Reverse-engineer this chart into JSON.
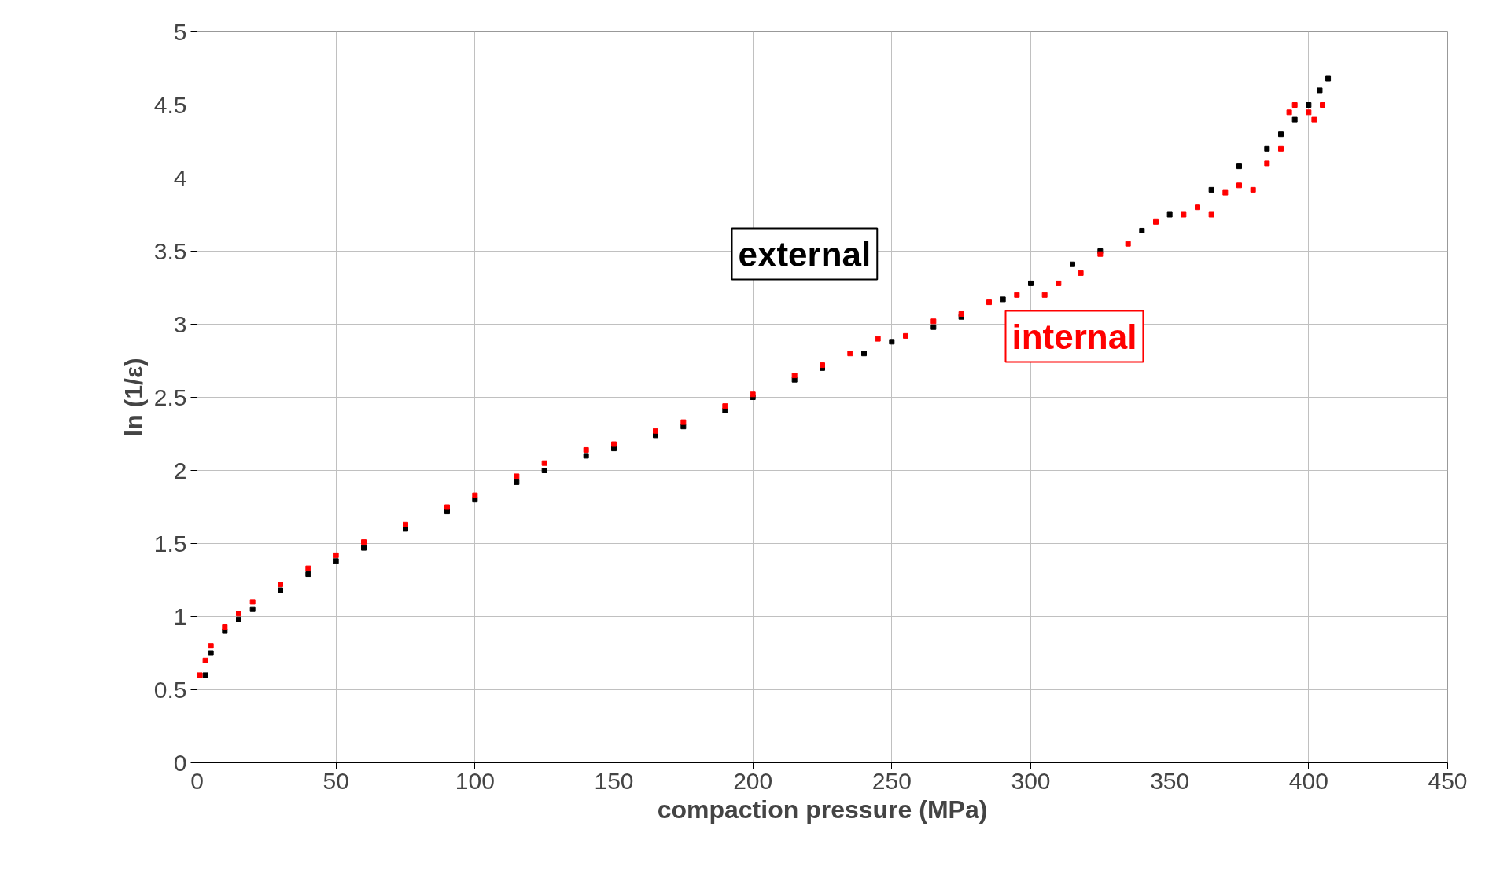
{
  "chart_data": {
    "type": "scatter",
    "xlabel": "compaction pressure (MPa)",
    "ylabel": "ln (1/ε)",
    "xlim": [
      0,
      450
    ],
    "ylim": [
      0,
      5
    ],
    "xticks": [
      0,
      50,
      100,
      150,
      200,
      250,
      300,
      350,
      400,
      450
    ],
    "yticks": [
      0,
      0.5,
      1,
      1.5,
      2,
      2.5,
      3,
      3.5,
      4,
      4.5,
      5
    ],
    "grid": true,
    "marker": "square",
    "series": [
      {
        "name": "external",
        "color": "#000000",
        "x": [
          3,
          5,
          10,
          15,
          20,
          30,
          40,
          50,
          60,
          75,
          90,
          100,
          115,
          125,
          140,
          150,
          165,
          175,
          190,
          200,
          215,
          225,
          240,
          250,
          265,
          275,
          290,
          300,
          315,
          325,
          340,
          350,
          365,
          375,
          385,
          390,
          395,
          400,
          404,
          407
        ],
        "values": [
          0.6,
          0.75,
          0.9,
          0.98,
          1.05,
          1.18,
          1.29,
          1.38,
          1.47,
          1.6,
          1.72,
          1.8,
          1.92,
          2.0,
          2.1,
          2.15,
          2.24,
          2.3,
          2.41,
          2.5,
          2.62,
          2.7,
          2.8,
          2.88,
          2.98,
          3.05,
          3.17,
          3.28,
          3.41,
          3.5,
          3.64,
          3.75,
          3.92,
          4.08,
          4.2,
          4.3,
          4.4,
          4.5,
          4.6,
          4.68
        ]
      },
      {
        "name": "internal",
        "color": "#ff0000",
        "x": [
          1,
          3,
          5,
          10,
          15,
          20,
          30,
          40,
          50,
          60,
          75,
          90,
          100,
          115,
          125,
          140,
          150,
          165,
          175,
          190,
          200,
          215,
          225,
          235,
          245,
          255,
          265,
          275,
          285,
          295,
          305,
          310,
          318,
          325,
          335,
          345,
          355,
          360,
          365,
          370,
          375,
          380,
          385,
          390,
          393,
          395,
          400,
          402,
          405
        ],
        "values": [
          0.6,
          0.7,
          0.8,
          0.93,
          1.02,
          1.1,
          1.22,
          1.33,
          1.42,
          1.51,
          1.63,
          1.75,
          1.83,
          1.96,
          2.05,
          2.14,
          2.18,
          2.27,
          2.33,
          2.44,
          2.52,
          2.65,
          2.72,
          2.8,
          2.9,
          2.92,
          3.02,
          3.07,
          3.15,
          3.2,
          3.2,
          3.28,
          3.35,
          3.48,
          3.55,
          3.7,
          3.75,
          3.8,
          3.75,
          3.9,
          3.95,
          3.92,
          4.1,
          4.2,
          4.45,
          4.5,
          4.45,
          4.4,
          4.5
        ]
      }
    ]
  }
}
